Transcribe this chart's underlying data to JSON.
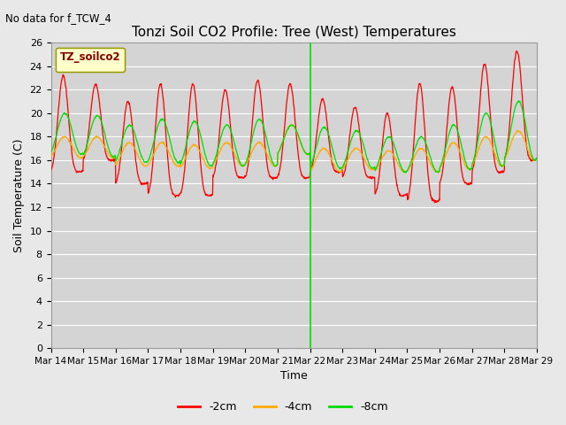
{
  "title": "Tonzi Soil CO2 Profile: Tree (West) Temperatures",
  "no_data_label": "No data for f_TCW_4",
  "legend_box_label": "TZ_soilco2",
  "ylabel": "Soil Temperature (C)",
  "xlabel": "Time",
  "ylim": [
    0,
    26
  ],
  "yticks": [
    0,
    2,
    4,
    6,
    8,
    10,
    12,
    14,
    16,
    18,
    20,
    22,
    24,
    26
  ],
  "color_2cm": "#ff0000",
  "color_4cm": "#ffaa00",
  "color_8cm": "#00dd00",
  "vline_color": "#00dd00",
  "vline_x": 8.0,
  "fig_facecolor": "#e8e8e8",
  "ax_facecolor": "#d4d4d4",
  "grid_color": "#ffffff",
  "x_tick_days": [
    14,
    15,
    16,
    17,
    18,
    19,
    20,
    21,
    22,
    23,
    24,
    25,
    26,
    27,
    28,
    29
  ],
  "legend_items": [
    "-2cm",
    "-4cm",
    "-8cm"
  ]
}
